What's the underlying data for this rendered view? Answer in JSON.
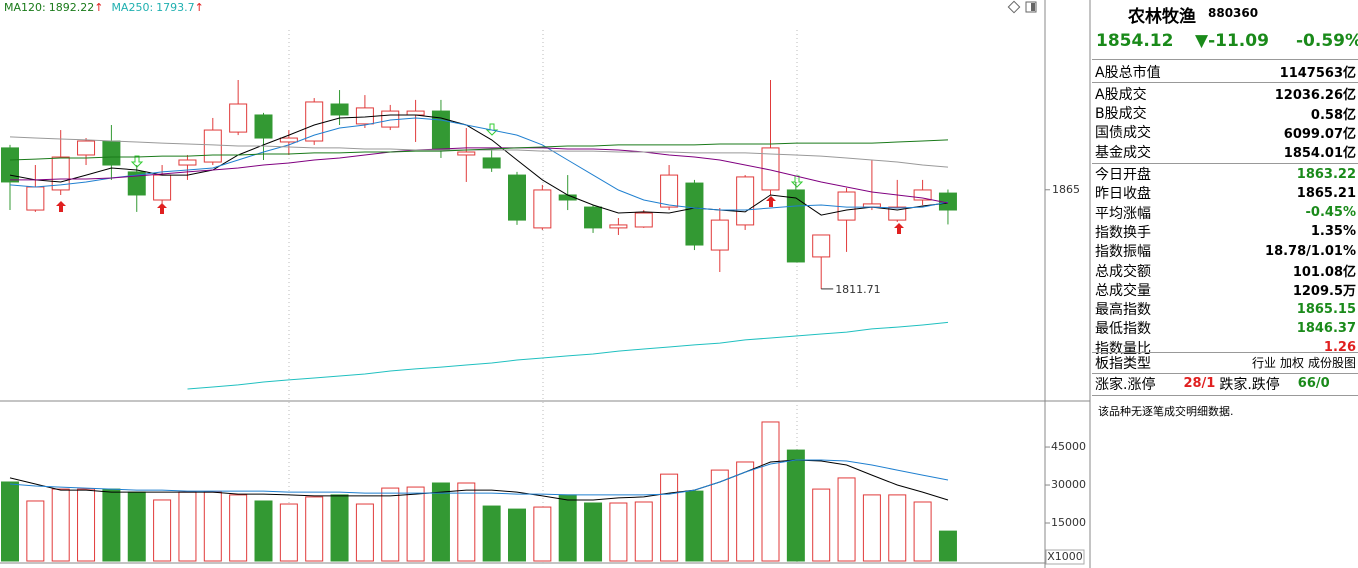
{
  "chart_data": [
    {
      "type": "candlestick",
      "legend": [
        {
          "label": "MA120:",
          "value": 1892.22,
          "trend": "↑",
          "color": "#1a7a1a"
        },
        {
          "label": "MA250:",
          "value": 1793.7,
          "trend": "↑",
          "color": "#20b0b0"
        }
      ],
      "trend_color": "#e02020",
      "up_color": "#e03a3a",
      "down_color": "#339933",
      "ylim": [
        1752,
        1967
      ],
      "yticks": [
        1865
      ],
      "open": [
        1887.5,
        1854.1,
        1864.9,
        1883.7,
        1891.2,
        1874.6,
        1859.5,
        1878.3,
        1879.9,
        1896,
        1905.2,
        1890.7,
        1891.2,
        1911.1,
        1900.4,
        1898.7,
        1905.2,
        1907.3,
        1883.7,
        1882.1,
        1872.9,
        1844.5,
        1862.2,
        1855.7,
        1844.5,
        1845,
        1855.7,
        1868.6,
        1832.6,
        1846.1,
        1864.9,
        1864.9,
        1828.9,
        1848.7,
        1855.7,
        1848.7,
        1859.5,
        1863.22
      ],
      "high": [
        1889.1,
        1878.3,
        1897.1,
        1892.8,
        1899.8,
        1878.3,
        1878.3,
        1883.7,
        1903.6,
        1924,
        1906.3,
        1897.1,
        1914.3,
        1918.6,
        1915.9,
        1910.6,
        1913.3,
        1913.3,
        1898.2,
        1886.4,
        1874.6,
        1867.6,
        1872.9,
        1856.8,
        1849.8,
        1854.1,
        1878.3,
        1870.3,
        1855.2,
        1872.9,
        1924,
        1869.2,
        1840.7,
        1866,
        1881,
        1870.3,
        1870.3,
        1865.15
      ],
      "low": [
        1854.1,
        1853.1,
        1862.2,
        1878.3,
        1870.3,
        1853.1,
        1856.8,
        1870.3,
        1878.3,
        1894.4,
        1881,
        1883.7,
        1889.1,
        1899.8,
        1898.2,
        1897.1,
        1890.7,
        1882.1,
        1869.2,
        1874.6,
        1846.1,
        1843.4,
        1854.1,
        1841.8,
        1840.7,
        1844.5,
        1854.1,
        1832.6,
        1820.8,
        1843.4,
        1862.2,
        1826.2,
        1811.71,
        1831.6,
        1854.1,
        1847.7,
        1856.8,
        1846.37
      ],
      "close": [
        1869.2,
        1866.5,
        1882.6,
        1891.2,
        1878.3,
        1862.2,
        1872.9,
        1881,
        1897.1,
        1911.1,
        1892.8,
        1892.8,
        1912.2,
        1905.2,
        1909,
        1907.3,
        1907.3,
        1886.4,
        1885.3,
        1876.7,
        1848.7,
        1864.9,
        1859.5,
        1844.5,
        1846.1,
        1852.5,
        1872.9,
        1835.3,
        1848.7,
        1871.9,
        1887.5,
        1826.2,
        1840.7,
        1863.8,
        1857.4,
        1855.7,
        1864.9,
        1854.12
      ],
      "series": [
        {
          "color": "#000000",
          "values": [
            1872.9,
            1870.3,
            1869.2,
            1872.9,
            1876.7,
            1875.6,
            1872.9,
            1872.9,
            1875.6,
            1883.7,
            1889.1,
            1894.4,
            1899.8,
            1903.6,
            1904.1,
            1905.2,
            1905.2,
            1903.6,
            1899.8,
            1891.8,
            1881,
            1870.3,
            1862.2,
            1856.8,
            1852.5,
            1853.1,
            1852.5,
            1855.2,
            1854.1,
            1853.1,
            1862.2,
            1860.6,
            1851.4,
            1854.1,
            1855.7,
            1854.1,
            1856.3,
            1857.9
          ]
        },
        {
          "color": "#2080d0",
          "values": [
            1867.6,
            1866.5,
            1867.6,
            1869.2,
            1871.3,
            1872.9,
            1874.6,
            1875.6,
            1876.7,
            1881,
            1885.3,
            1889.1,
            1894.4,
            1898.2,
            1899.8,
            1902.5,
            1903.6,
            1902.5,
            1899.8,
            1897.1,
            1894.4,
            1889.1,
            1881,
            1872.9,
            1864.9,
            1859.5,
            1856.8,
            1855.2,
            1854.1,
            1854.1,
            1855.2,
            1856.3,
            1856.8,
            1855.7,
            1855.7,
            1855.2,
            1855.7,
            1858.4
          ]
        },
        {
          "color": "#800080",
          "values": [
            1870.3,
            1870.3,
            1870.8,
            1870.8,
            1871.3,
            1872.4,
            1873.5,
            1874.6,
            1875.6,
            1876.7,
            1878.3,
            1879.4,
            1881,
            1882.1,
            1883.7,
            1885.3,
            1886.4,
            1886.9,
            1887.5,
            1887.5,
            1887.5,
            1887.5,
            1886.9,
            1886.9,
            1886.4,
            1885.3,
            1883.7,
            1882.6,
            1881,
            1878.3,
            1875.6,
            1872.4,
            1869.2,
            1866.5,
            1863.8,
            1862.2,
            1860.6,
            1857.9
          ]
        },
        {
          "color": "#999999",
          "values": [
            1893.4,
            1892.8,
            1892.3,
            1891.8,
            1891.2,
            1890.7,
            1890.1,
            1889.6,
            1889.1,
            1888.5,
            1888.5,
            1888,
            1887.5,
            1887.5,
            1886.9,
            1886.9,
            1886.4,
            1886.4,
            1886.4,
            1886.4,
            1886.4,
            1885.8,
            1885.8,
            1885.8,
            1885.3,
            1885.3,
            1885.3,
            1884.8,
            1884.8,
            1884.8,
            1884.2,
            1883.7,
            1883.1,
            1882.1,
            1881,
            1879.9,
            1878.3,
            1877.2
          ]
        },
        {
          "color": "#1a7a1a",
          "values": [
            1881,
            1881.5,
            1882.1,
            1882.1,
            1882.6,
            1882.6,
            1883.1,
            1883.1,
            1883.7,
            1883.7,
            1884.2,
            1884.2,
            1884.8,
            1884.8,
            1885.3,
            1885.3,
            1885.8,
            1885.8,
            1886.4,
            1886.9,
            1887.5,
            1888,
            1888.5,
            1888.5,
            1889.1,
            1889.1,
            1889.1,
            1889.1,
            1889.6,
            1889.6,
            1889.6,
            1890.1,
            1890.1,
            1890.1,
            1890.1,
            1890.7,
            1891.2,
            1891.8
          ]
        },
        {
          "color": "#20c0c0",
          "values": [
            null,
            null,
            null,
            null,
            null,
            null,
            null,
            1757.9,
            1759,
            1760.1,
            1761.7,
            1762.8,
            1763.8,
            1764.9,
            1766,
            1767.6,
            1768.7,
            1769.7,
            1770.8,
            1771.9,
            1773.5,
            1774.6,
            1775.7,
            1776.7,
            1778.3,
            1779.4,
            1780.5,
            1781.6,
            1782.6,
            1784.3,
            1785.3,
            1786.4,
            1787.5,
            1788.5,
            1790.2,
            1791.2,
            1792.3,
            1793.7
          ]
        }
      ],
      "annotation": {
        "index": 32,
        "value": 1811.71
      }
    },
    {
      "type": "volume",
      "ylim": [
        0,
        61600
      ],
      "yticks": [
        15000,
        30000,
        45000
      ],
      "unit_label": "X1000",
      "values": [
        31200,
        23700,
        28400,
        28400,
        28400,
        27200,
        24100,
        27200,
        27200,
        26100,
        23700,
        22500,
        25300,
        26100,
        22500,
        28800,
        29200,
        30800,
        30800,
        21700,
        20500,
        21300,
        26100,
        22900,
        22900,
        23300,
        34300,
        27600,
        35900,
        39100,
        54900,
        43800,
        28400,
        32800,
        26100,
        26100,
        23300,
        11800
      ],
      "series": [
        {
          "color": "#000000",
          "values": [
            32800,
            30400,
            28000,
            28000,
            27200,
            27200,
            27200,
            27200,
            27200,
            26400,
            26400,
            26100,
            25700,
            25700,
            25700,
            25700,
            26400,
            27200,
            28000,
            28000,
            27200,
            25700,
            24100,
            24100,
            24900,
            25300,
            26800,
            28000,
            31200,
            35100,
            39100,
            39900,
            39500,
            37900,
            33900,
            30000,
            27200,
            24100
          ]
        },
        {
          "color": "#2080d0",
          "values": [
            30400,
            29600,
            29200,
            28800,
            28400,
            28000,
            28000,
            27600,
            27600,
            27600,
            27600,
            27200,
            27200,
            27200,
            26800,
            26800,
            26800,
            26800,
            26800,
            26800,
            26400,
            26400,
            26100,
            26100,
            26100,
            26100,
            26400,
            28000,
            31200,
            35100,
            38300,
            39900,
            39900,
            39500,
            37900,
            35900,
            33900,
            32000
          ]
        }
      ]
    }
  ],
  "panel": {
    "name": "农林牧渔",
    "code": "880360",
    "price": "1854.12",
    "change": "▼-11.09",
    "pct": "-0.59%",
    "quote_color": "#1a8a1a",
    "rows": [
      {
        "label": "A股总市值",
        "value": "1147563亿"
      },
      {
        "label": "A股成交",
        "value": "12036.26亿"
      },
      {
        "label": "B股成交",
        "value": "0.58亿"
      },
      {
        "label": "国债成交",
        "value": "6099.07亿"
      },
      {
        "label": "基金成交",
        "value": "1854.01亿"
      },
      {
        "label": "今日开盘",
        "value": "1863.22",
        "color": "#1a8a1a"
      },
      {
        "label": "昨日收盘",
        "value": "1865.21"
      },
      {
        "label": "平均涨幅",
        "value": "-0.45%",
        "color": "#1a8a1a"
      },
      {
        "label": "指数换手",
        "value": "1.35%"
      },
      {
        "label": "指数振幅",
        "value": "18.78/1.01%"
      },
      {
        "label": "总成交额",
        "value": "101.08亿"
      },
      {
        "label": "总成交量",
        "value": "1209.5万"
      },
      {
        "label": "最高指数",
        "value": "1865.15",
        "color": "#1a8a1a"
      },
      {
        "label": "最低指数",
        "value": "1846.37",
        "color": "#1a8a1a"
      },
      {
        "label": "指数量比",
        "value": "1.26",
        "color": "#e02020"
      }
    ],
    "type_row": {
      "label": "板指类型",
      "options": [
        "行业",
        "加权",
        "成份股图"
      ]
    },
    "breadth": {
      "up_label": "涨家.涨停",
      "up_value": "28/1",
      "down_label": "跌家.跌停",
      "down_value": "66/0"
    },
    "note": "该品种无逐笔成交明细数据."
  }
}
